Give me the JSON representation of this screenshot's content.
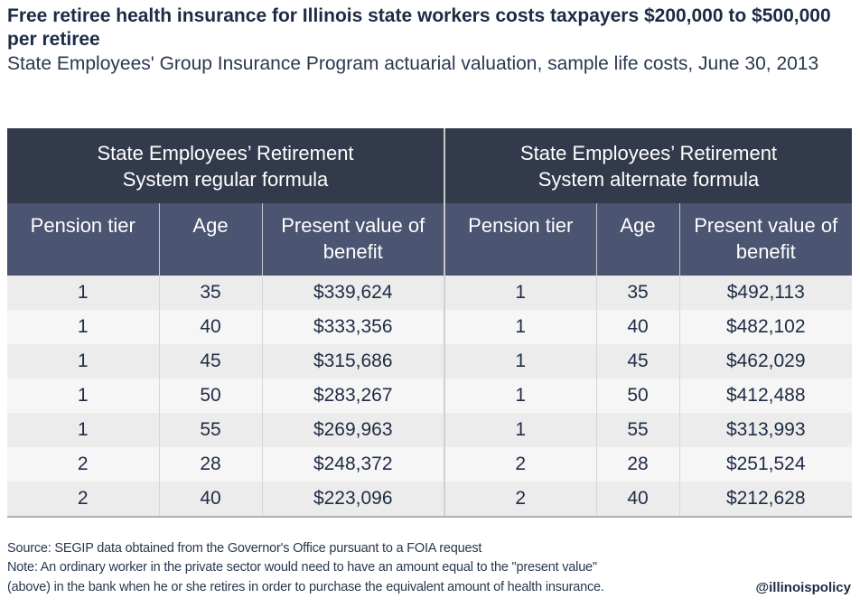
{
  "title": "Free retiree health insurance for Illinois state workers costs taxpayers $200,000 to $500,000 per retiree",
  "subtitle": "State Employees' Group Insurance Program actuarial valuation, sample life costs, June 30, 2013",
  "chart_data": {
    "type": "table",
    "groups": [
      "State Employees’ Retirement System regular formula",
      "State Employees’ Retirement System alternate formula"
    ],
    "columns": [
      "Pension tier",
      "Age",
      "Present value of benefit",
      "Pension tier",
      "Age",
      "Present value of benefit"
    ],
    "rows": [
      [
        "1",
        "35",
        "$339,624",
        "1",
        "35",
        "$492,113"
      ],
      [
        "1",
        "40",
        "$333,356",
        "1",
        "40",
        "$482,102"
      ],
      [
        "1",
        "45",
        "$315,686",
        "1",
        "45",
        "$462,029"
      ],
      [
        "1",
        "50",
        "$283,267",
        "1",
        "50",
        "$412,488"
      ],
      [
        "1",
        "55",
        "$269,963",
        "1",
        "55",
        "$313,993"
      ],
      [
        "2",
        "28",
        "$248,372",
        "2",
        "28",
        "$251,524"
      ],
      [
        "2",
        "40",
        "$223,096",
        "2",
        "40",
        "$212,628"
      ]
    ]
  },
  "footer": {
    "source": "Source: SEGIP data obtained from the Governor's Office pursuant to a FOIA request",
    "note1": "Note: An ordinary worker in the private sector would need to have an amount equal to the \"present value\"",
    "note2": "(above) in the bank when he or she retires in order to purchase the equivalent amount of health insurance.",
    "handle": "@illinoispolicy"
  },
  "colors": {
    "group_header": "#333a4b",
    "column_header": "#4b5470",
    "text": "#1f2c44"
  }
}
